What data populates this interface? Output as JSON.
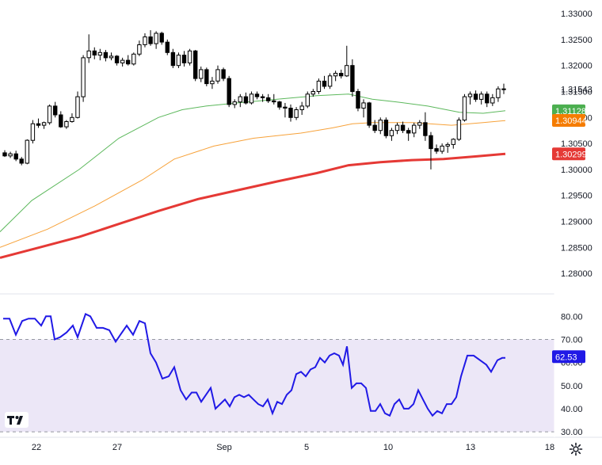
{
  "chart_data": {
    "type": "candlestick",
    "price_axis": {
      "ticks": [
        "1.33000",
        "1.32500",
        "1.32000",
        "1.31500",
        "1.31000",
        "1.30500",
        "1.30000",
        "1.29500",
        "1.29000",
        "1.28500",
        "1.28000"
      ],
      "range": [
        1.2765,
        1.332
      ]
    },
    "rsi_axis": {
      "ticks": [
        "80.00",
        "70.00",
        "60.00",
        "50.00",
        "40.00",
        "30.00"
      ],
      "range": [
        29,
        88
      ],
      "band": [
        30,
        70
      ]
    },
    "x_labels": [
      "22",
      "27",
      "Sep",
      "5",
      "10",
      "13",
      "18"
    ],
    "labels": {
      "last_price": "1.31543",
      "ma_green": "1.31128",
      "ma_orange": "1.30944",
      "ma_red": "1.30299",
      "rsi_value": "62.53"
    },
    "colors": {
      "up": "#ffffff",
      "down": "#000000",
      "wick": "#000000",
      "ma_green": "#5cb85c",
      "ma_orange": "#f7a23a",
      "ma_red": "#e53935",
      "rsi": "#2019e6",
      "rsi_band": "#ece7f7",
      "badge_green": "#4caf50",
      "badge_orange": "#f57c00",
      "badge_red": "#e53935",
      "badge_rsi": "#2019e6"
    },
    "candles": [
      [
        1.3032,
        1.3037,
        1.3024,
        1.3026
      ],
      [
        1.3026,
        1.3034,
        1.3022,
        1.303
      ],
      [
        1.303,
        1.3036,
        1.3016,
        1.302
      ],
      [
        1.302,
        1.3024,
        1.3008,
        1.3012
      ],
      [
        1.3012,
        1.3058,
        1.301,
        1.3056
      ],
      [
        1.3056,
        1.3095,
        1.305,
        1.3088
      ],
      [
        1.3088,
        1.3098,
        1.308,
        1.3085
      ],
      [
        1.3085,
        1.3092,
        1.3078,
        1.309
      ],
      [
        1.309,
        1.3125,
        1.3086,
        1.3122
      ],
      [
        1.3122,
        1.313,
        1.31,
        1.3105
      ],
      [
        1.3105,
        1.3112,
        1.308,
        1.3082
      ],
      [
        1.3082,
        1.3095,
        1.3078,
        1.3092
      ],
      [
        1.3092,
        1.3108,
        1.309,
        1.31
      ],
      [
        1.31,
        1.315,
        1.3098,
        1.314
      ],
      [
        1.314,
        1.322,
        1.313,
        1.3215
      ],
      [
        1.3215,
        1.326,
        1.3205,
        1.3228
      ],
      [
        1.3228,
        1.3235,
        1.3212,
        1.322
      ],
      [
        1.322,
        1.3232,
        1.321,
        1.3225
      ],
      [
        1.3225,
        1.323,
        1.3208,
        1.3215
      ],
      [
        1.3215,
        1.3225,
        1.321,
        1.3218
      ],
      [
        1.3218,
        1.322,
        1.32,
        1.3205
      ],
      [
        1.3205,
        1.3215,
        1.3198,
        1.321
      ],
      [
        1.321,
        1.322,
        1.32,
        1.3203
      ],
      [
        1.3203,
        1.3225,
        1.32,
        1.3222
      ],
      [
        1.3222,
        1.3248,
        1.3218,
        1.324
      ],
      [
        1.324,
        1.3262,
        1.3235,
        1.3255
      ],
      [
        1.3255,
        1.3268,
        1.3238,
        1.3242
      ],
      [
        1.3242,
        1.3266,
        1.3232,
        1.3262
      ],
      [
        1.3262,
        1.3265,
        1.324,
        1.3245
      ],
      [
        1.3245,
        1.325,
        1.322,
        1.3225
      ],
      [
        1.3225,
        1.3232,
        1.3195,
        1.32
      ],
      [
        1.32,
        1.3225,
        1.3195,
        1.322
      ],
      [
        1.322,
        1.3228,
        1.3198,
        1.3205
      ],
      [
        1.3205,
        1.3232,
        1.32,
        1.3228
      ],
      [
        1.3228,
        1.323,
        1.317,
        1.3175
      ],
      [
        1.3175,
        1.3198,
        1.3168,
        1.3192
      ],
      [
        1.3192,
        1.3196,
        1.316,
        1.3165
      ],
      [
        1.3165,
        1.3178,
        1.3155,
        1.317
      ],
      [
        1.317,
        1.32,
        1.3165,
        1.3192
      ],
      [
        1.3192,
        1.3196,
        1.317,
        1.3175
      ],
      [
        1.3175,
        1.318,
        1.312,
        1.3125
      ],
      [
        1.3125,
        1.3135,
        1.3118,
        1.313
      ],
      [
        1.313,
        1.3145,
        1.312,
        1.314
      ],
      [
        1.314,
        1.3148,
        1.3125,
        1.3128
      ],
      [
        1.3128,
        1.315,
        1.3125,
        1.3145
      ],
      [
        1.3145,
        1.315,
        1.3135,
        1.314
      ],
      [
        1.314,
        1.3145,
        1.313,
        1.3138
      ],
      [
        1.3138,
        1.3145,
        1.3128,
        1.3132
      ],
      [
        1.3132,
        1.3145,
        1.3125,
        1.313
      ],
      [
        1.313,
        1.3132,
        1.3115,
        1.312
      ],
      [
        1.312,
        1.3128,
        1.31,
        1.3118
      ],
      [
        1.3118,
        1.3125,
        1.3092,
        1.31
      ],
      [
        1.31,
        1.312,
        1.3095,
        1.3115
      ],
      [
        1.3115,
        1.313,
        1.3105,
        1.3122
      ],
      [
        1.3122,
        1.315,
        1.3118,
        1.3145
      ],
      [
        1.3145,
        1.3155,
        1.314,
        1.315
      ],
      [
        1.315,
        1.3175,
        1.3145,
        1.317
      ],
      [
        1.317,
        1.318,
        1.3155,
        1.316
      ],
      [
        1.316,
        1.3185,
        1.3155,
        1.318
      ],
      [
        1.318,
        1.319,
        1.317,
        1.3185
      ],
      [
        1.3185,
        1.3192,
        1.3175,
        1.318
      ],
      [
        1.318,
        1.3238,
        1.3178,
        1.32
      ],
      [
        1.32,
        1.3212,
        1.314,
        1.315
      ],
      [
        1.315,
        1.3155,
        1.3112,
        1.3118
      ],
      [
        1.3118,
        1.3135,
        1.31,
        1.3128
      ],
      [
        1.3128,
        1.313,
        1.308,
        1.3085
      ],
      [
        1.3085,
        1.3095,
        1.307,
        1.3075
      ],
      [
        1.3075,
        1.31,
        1.3068,
        1.3095
      ],
      [
        1.3095,
        1.31,
        1.306,
        1.3065
      ],
      [
        1.3065,
        1.308,
        1.3055,
        1.3075
      ],
      [
        1.3075,
        1.309,
        1.3068,
        1.3085
      ],
      [
        1.3085,
        1.3092,
        1.307,
        1.3075
      ],
      [
        1.3075,
        1.308,
        1.3055,
        1.307
      ],
      [
        1.307,
        1.309,
        1.3062,
        1.3085
      ],
      [
        1.3085,
        1.3095,
        1.3078,
        1.309
      ],
      [
        1.309,
        1.311,
        1.3055,
        1.3065
      ],
      [
        1.3065,
        1.3072,
        1.3,
        1.304
      ],
      [
        1.304,
        1.3048,
        1.303,
        1.3035
      ],
      [
        1.3035,
        1.305,
        1.303,
        1.3045
      ],
      [
        1.3045,
        1.3052,
        1.3032,
        1.3048
      ],
      [
        1.3048,
        1.306,
        1.304,
        1.3058
      ],
      [
        1.3058,
        1.31,
        1.3055,
        1.3095
      ],
      [
        1.3095,
        1.3145,
        1.3092,
        1.314
      ],
      [
        1.314,
        1.315,
        1.3125,
        1.3145
      ],
      [
        1.3145,
        1.3152,
        1.313,
        1.3135
      ],
      [
        1.3135,
        1.315,
        1.3125,
        1.3145
      ],
      [
        1.3145,
        1.315,
        1.312,
        1.3128
      ],
      [
        1.3128,
        1.3145,
        1.3122,
        1.3138
      ],
      [
        1.3138,
        1.316,
        1.313,
        1.3155
      ],
      [
        1.3155,
        1.3165,
        1.3145,
        1.3154
      ]
    ],
    "ma_green": [
      [
        0,
        1.288
      ],
      [
        40,
        1.294
      ],
      [
        100,
        1.3
      ],
      [
        150,
        1.306
      ],
      [
        200,
        1.31
      ],
      [
        230,
        1.3115
      ],
      [
        260,
        1.3122
      ],
      [
        300,
        1.3128
      ],
      [
        350,
        1.3135
      ],
      [
        400,
        1.3142
      ],
      [
        440,
        1.3145
      ],
      [
        470,
        1.3135
      ],
      [
        500,
        1.313
      ],
      [
        540,
        1.3122
      ],
      [
        580,
        1.311
      ],
      [
        610,
        1.3108
      ],
      [
        638,
        1.3113
      ]
    ],
    "ma_orange": [
      [
        0,
        1.285
      ],
      [
        60,
        1.2885
      ],
      [
        120,
        1.293
      ],
      [
        180,
        1.298
      ],
      [
        220,
        1.302
      ],
      [
        270,
        1.3045
      ],
      [
        320,
        1.306
      ],
      [
        380,
        1.307
      ],
      [
        420,
        1.308
      ],
      [
        445,
        1.3088
      ],
      [
        470,
        1.309
      ],
      [
        520,
        1.309
      ],
      [
        570,
        1.3085
      ],
      [
        610,
        1.309
      ],
      [
        638,
        1.3094
      ]
    ],
    "ma_red": [
      [
        0,
        1.283
      ],
      [
        50,
        1.285
      ],
      [
        100,
        1.287
      ],
      [
        150,
        1.2895
      ],
      [
        200,
        1.292
      ],
      [
        250,
        1.2943
      ],
      [
        300,
        1.296
      ],
      [
        350,
        1.2977
      ],
      [
        400,
        1.2993
      ],
      [
        440,
        1.3008
      ],
      [
        480,
        1.3014
      ],
      [
        520,
        1.3018
      ],
      [
        560,
        1.302
      ],
      [
        600,
        1.3025
      ],
      [
        638,
        1.303
      ]
    ],
    "rsi": [
      [
        4,
        79
      ],
      [
        12,
        79
      ],
      [
        20,
        72
      ],
      [
        28,
        78
      ],
      [
        36,
        79
      ],
      [
        44,
        79
      ],
      [
        52,
        76
      ],
      [
        58,
        80
      ],
      [
        64,
        80
      ],
      [
        69,
        70
      ],
      [
        76,
        71
      ],
      [
        84,
        73
      ],
      [
        92,
        76
      ],
      [
        98,
        71
      ],
      [
        108,
        81
      ],
      [
        114,
        80
      ],
      [
        122,
        75
      ],
      [
        130,
        75
      ],
      [
        138,
        74
      ],
      [
        146,
        69
      ],
      [
        152,
        72
      ],
      [
        160,
        76
      ],
      [
        168,
        72
      ],
      [
        176,
        78
      ],
      [
        183,
        77
      ],
      [
        190,
        64
      ],
      [
        197,
        60
      ],
      [
        205,
        53
      ],
      [
        213,
        54
      ],
      [
        220,
        58
      ],
      [
        228,
        48
      ],
      [
        235,
        44
      ],
      [
        242,
        47
      ],
      [
        248,
        47
      ],
      [
        254,
        43
      ],
      [
        260,
        46
      ],
      [
        266,
        49
      ],
      [
        272,
        40
      ],
      [
        278,
        42
      ],
      [
        284,
        44
      ],
      [
        290,
        41
      ],
      [
        296,
        45
      ],
      [
        302,
        46
      ],
      [
        308,
        45
      ],
      [
        314,
        46
      ],
      [
        320,
        44
      ],
      [
        326,
        42
      ],
      [
        332,
        41
      ],
      [
        338,
        44
      ],
      [
        344,
        38
      ],
      [
        350,
        43
      ],
      [
        356,
        42
      ],
      [
        362,
        46
      ],
      [
        368,
        48
      ],
      [
        374,
        55
      ],
      [
        380,
        56
      ],
      [
        386,
        54
      ],
      [
        392,
        57
      ],
      [
        398,
        58
      ],
      [
        404,
        62
      ],
      [
        410,
        60
      ],
      [
        416,
        63
      ],
      [
        422,
        64
      ],
      [
        428,
        63
      ],
      [
        433,
        59
      ],
      [
        438,
        67
      ],
      [
        444,
        49
      ],
      [
        450,
        51
      ],
      [
        456,
        51
      ],
      [
        462,
        49
      ],
      [
        468,
        39
      ],
      [
        474,
        39
      ],
      [
        480,
        42
      ],
      [
        486,
        38
      ],
      [
        492,
        37
      ],
      [
        498,
        42
      ],
      [
        504,
        44
      ],
      [
        510,
        40
      ],
      [
        516,
        40
      ],
      [
        522,
        42
      ],
      [
        528,
        48
      ],
      [
        534,
        44
      ],
      [
        540,
        40
      ],
      [
        546,
        37
      ],
      [
        552,
        39
      ],
      [
        558,
        38
      ],
      [
        564,
        42
      ],
      [
        570,
        42
      ],
      [
        576,
        45
      ],
      [
        582,
        54
      ],
      [
        590,
        63
      ],
      [
        598,
        63
      ],
      [
        606,
        61
      ],
      [
        614,
        59
      ],
      [
        620,
        56
      ],
      [
        628,
        61
      ],
      [
        634,
        62
      ],
      [
        638,
        62
      ]
    ]
  }
}
